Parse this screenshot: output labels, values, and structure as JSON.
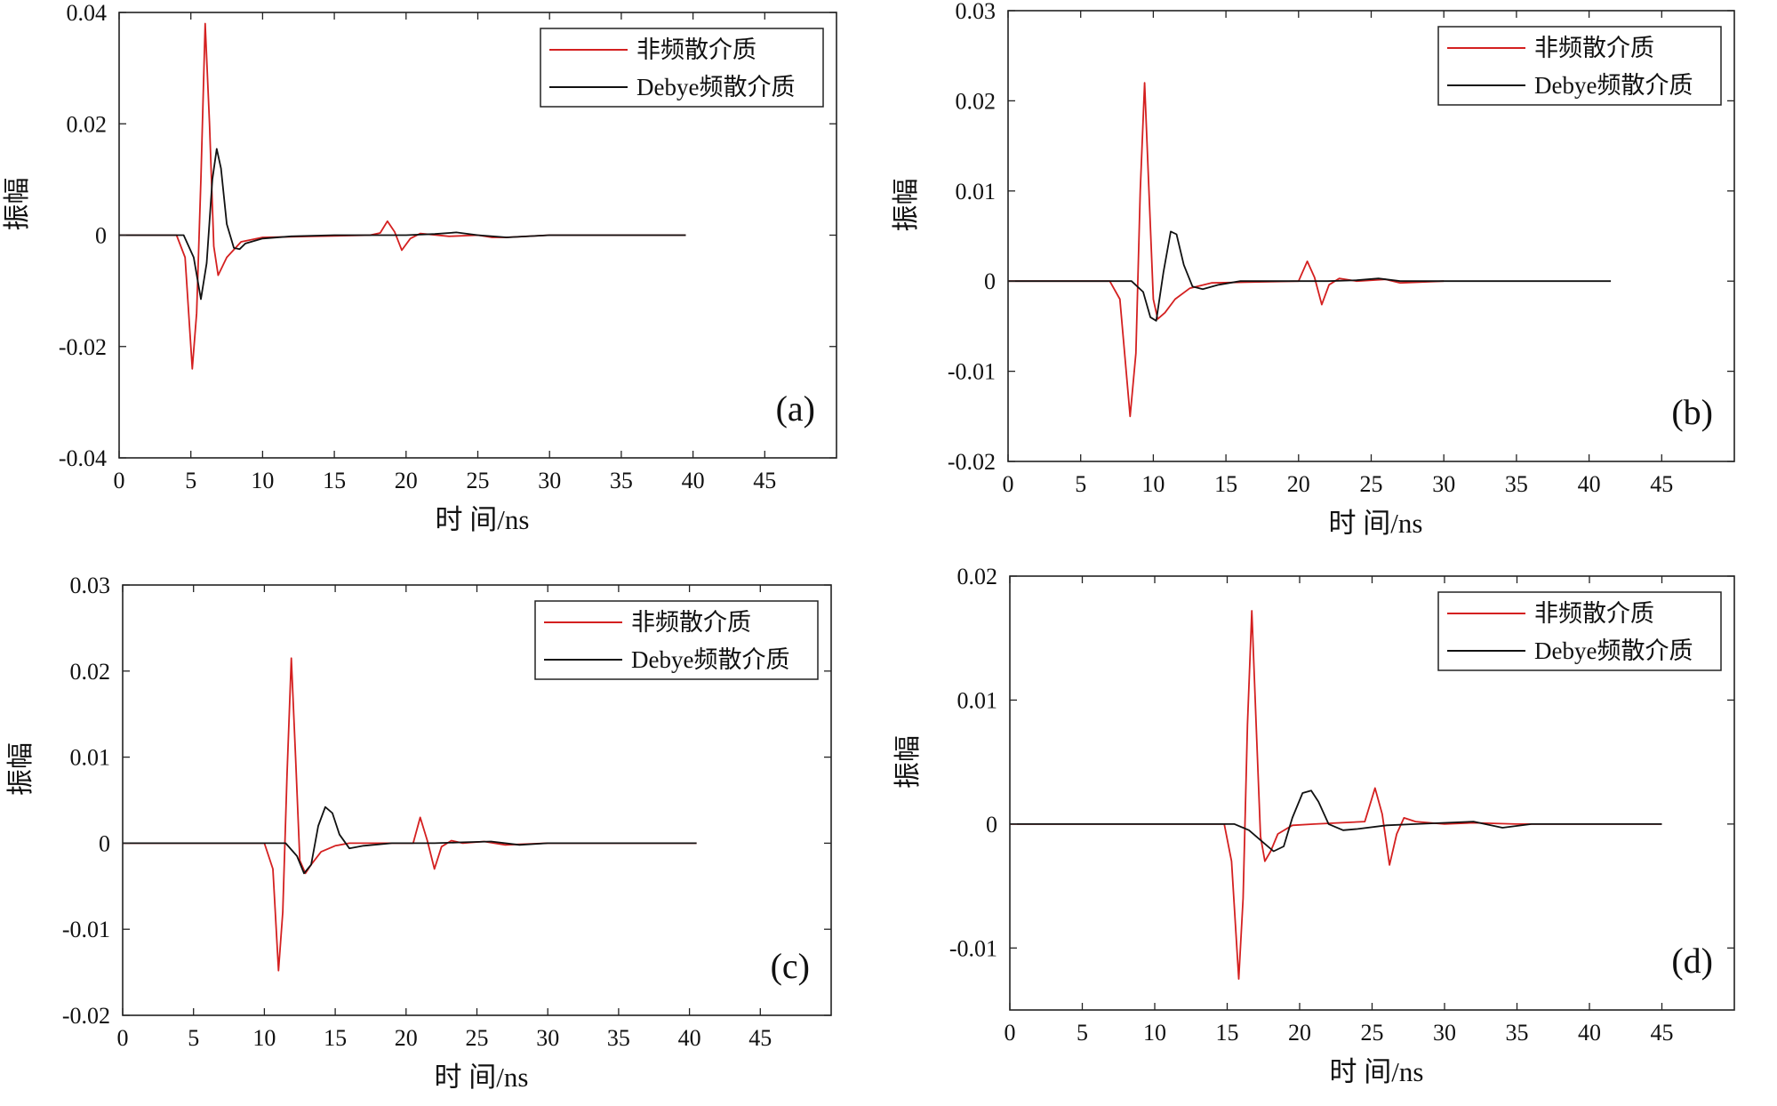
{
  "colors": {
    "red": "#d42020",
    "black": "#111111",
    "axis": "#222222"
  },
  "chart_data": [
    {
      "type": "line",
      "panel_label": "(a)",
      "xlabel": "时 间/ns",
      "ylabel": "振幅",
      "xlim": [
        0,
        50
      ],
      "ylim": [
        -0.04,
        0.04
      ],
      "xticks": [
        0,
        5,
        10,
        15,
        20,
        25,
        30,
        35,
        40,
        45
      ],
      "xtick_labels": [
        "0",
        "5",
        "10",
        "15",
        "20",
        "25",
        "30",
        "35",
        "40",
        "45"
      ],
      "yticks": [
        -0.04,
        -0.02,
        0,
        0.02,
        0.04
      ],
      "ytick_labels": [
        "-0.04",
        "-0.02",
        "0",
        "0.02",
        "0.04"
      ],
      "legend_position": "top-right",
      "series": [
        {
          "name": "非频散介质",
          "color": "red",
          "x": [
            0,
            4.0,
            4.6,
            5.1,
            5.4,
            5.7,
            6.0,
            6.3,
            6.6,
            6.9,
            7.5,
            8.5,
            10,
            17.5,
            18.2,
            18.7,
            19.2,
            19.7,
            20.3,
            21,
            23,
            25,
            26,
            27,
            30,
            39.5
          ],
          "y": [
            0,
            0,
            -0.004,
            -0.024,
            -0.014,
            0.01,
            0.038,
            0.02,
            -0.002,
            -0.0072,
            -0.004,
            -0.0012,
            -0.0004,
            0,
            0.0004,
            0.0025,
            0.0006,
            -0.0027,
            -0.0006,
            0.0003,
            -0.0002,
            0,
            -0.0004,
            -0.0004,
            0,
            0
          ]
        },
        {
          "name": "Debye频散介质",
          "color": "black",
          "x": [
            0,
            4.5,
            5.2,
            5.7,
            6.1,
            6.5,
            6.8,
            7.1,
            7.5,
            8.0,
            8.4,
            8.8,
            10,
            12,
            15,
            20,
            22,
            23.5,
            25,
            27,
            30,
            39.5
          ],
          "y": [
            0,
            0,
            -0.004,
            -0.0115,
            -0.005,
            0.01,
            0.0155,
            0.012,
            0.002,
            -0.0023,
            -0.0025,
            -0.0015,
            -0.0006,
            -0.0002,
            0,
            0,
            0.0002,
            0.0005,
            0,
            -0.0004,
            0,
            0
          ]
        }
      ]
    },
    {
      "type": "line",
      "panel_label": "(b)",
      "xlabel": "时 间/ns",
      "ylabel": "振幅",
      "xlim": [
        0,
        50
      ],
      "ylim": [
        -0.02,
        0.03
      ],
      "xticks": [
        0,
        5,
        10,
        15,
        20,
        25,
        30,
        35,
        40,
        45
      ],
      "xtick_labels": [
        "0",
        "5",
        "10",
        "15",
        "20",
        "25",
        "30",
        "35",
        "40",
        "45"
      ],
      "yticks": [
        -0.02,
        -0.01,
        0,
        0.01,
        0.02,
        0.03
      ],
      "ytick_labels": [
        "-0.02",
        "-0.01",
        "0",
        "0.01",
        "0.02",
        "0.03"
      ],
      "legend_position": "top-right",
      "series": [
        {
          "name": "非频散介质",
          "color": "red",
          "x": [
            0,
            7.0,
            7.7,
            8.4,
            8.8,
            9.1,
            9.4,
            9.7,
            10.0,
            10.3,
            10.8,
            11.5,
            12.5,
            14,
            20.0,
            20.6,
            21.1,
            21.6,
            22.1,
            22.8,
            24,
            26,
            27,
            30
          ],
          "y": [
            0,
            0,
            -0.002,
            -0.015,
            -0.008,
            0.01,
            0.022,
            0.01,
            -0.002,
            -0.0042,
            -0.0035,
            -0.002,
            -0.0008,
            -0.0002,
            0,
            0.0022,
            0.0004,
            -0.0026,
            -0.0004,
            0.0003,
            0,
            0.0002,
            -0.0002,
            0
          ]
        },
        {
          "name": "Debye频散介质",
          "color": "black",
          "x": [
            0,
            8.5,
            9.3,
            9.8,
            10.2,
            10.7,
            11.2,
            11.6,
            12.1,
            12.7,
            13.4,
            14.5,
            16,
            20,
            22,
            24,
            25.5,
            27,
            30,
            41.5
          ],
          "y": [
            0,
            0,
            -0.0012,
            -0.004,
            -0.0044,
            0.001,
            0.0055,
            0.0052,
            0.0018,
            -0.0006,
            -0.0009,
            -0.0004,
            0,
            0,
            0,
            0.0001,
            0.0003,
            0,
            0,
            0
          ]
        }
      ]
    },
    {
      "type": "line",
      "panel_label": "(c)",
      "xlabel": "时 间/ns",
      "ylabel": "振幅",
      "xlim": [
        0,
        50
      ],
      "ylim": [
        -0.02,
        0.03
      ],
      "xticks": [
        0,
        5,
        10,
        15,
        20,
        25,
        30,
        35,
        40,
        45
      ],
      "xtick_labels": [
        "0",
        "5",
        "10",
        "15",
        "20",
        "25",
        "30",
        "35",
        "40",
        "45"
      ],
      "yticks": [
        -0.02,
        -0.01,
        0,
        0.01,
        0.02,
        0.03
      ],
      "ytick_labels": [
        "-0.02",
        "-0.01",
        "0",
        "0.01",
        "0.02",
        "0.03"
      ],
      "legend_position": "top-right",
      "series": [
        {
          "name": "非频散介质",
          "color": "red",
          "x": [
            0,
            10.0,
            10.6,
            11.0,
            11.3,
            11.6,
            11.9,
            12.2,
            12.5,
            12.9,
            13.3,
            14,
            15,
            16,
            20.5,
            21.0,
            21.5,
            22.0,
            22.5,
            23.2,
            24,
            25.5,
            27,
            30,
            40.5
          ],
          "y": [
            0,
            0,
            -0.003,
            -0.0148,
            -0.008,
            0.008,
            0.0215,
            0.01,
            -0.002,
            -0.0035,
            -0.0025,
            -0.001,
            -0.0003,
            0,
            0,
            0.003,
            0.0003,
            -0.003,
            -0.0004,
            0.0003,
            0,
            0.0002,
            -0.0002,
            0,
            0
          ]
        },
        {
          "name": "Debye频散介质",
          "color": "black",
          "x": [
            0,
            11.5,
            12.3,
            12.8,
            13.3,
            13.8,
            14.3,
            14.8,
            15.3,
            16.0,
            17,
            19,
            22,
            24,
            26,
            28,
            30,
            40.5
          ],
          "y": [
            0,
            0,
            -0.0015,
            -0.0035,
            -0.0025,
            0.002,
            0.0042,
            0.0035,
            0.001,
            -0.0006,
            -0.0003,
            0,
            0,
            0.0001,
            0.0002,
            -0.0002,
            0,
            0
          ]
        }
      ]
    },
    {
      "type": "line",
      "panel_label": "(d)",
      "xlabel": "时 间/ns",
      "ylabel": "振幅",
      "xlim": [
        0,
        50
      ],
      "ylim": [
        -0.015,
        0.02
      ],
      "xticks": [
        0,
        5,
        10,
        15,
        20,
        25,
        30,
        35,
        40,
        45
      ],
      "xtick_labels": [
        "0",
        "5",
        "10",
        "15",
        "20",
        "25",
        "30",
        "35",
        "40",
        "45"
      ],
      "yticks": [
        -0.01,
        0,
        0.01,
        0.02
      ],
      "ytick_labels": [
        "-0.01",
        "0",
        "0.01",
        "0.02"
      ],
      "legend_position": "top-right",
      "series": [
        {
          "name": "非频散介质",
          "color": "red",
          "x": [
            0,
            14.8,
            15.3,
            15.8,
            16.1,
            16.4,
            16.7,
            17.0,
            17.3,
            17.6,
            18.0,
            18.5,
            19.5,
            21,
            24.5,
            25.2,
            25.7,
            26.2,
            26.7,
            27.2,
            28,
            30,
            32,
            35,
            45
          ],
          "y": [
            0,
            0,
            -0.003,
            -0.0125,
            -0.006,
            0.008,
            0.0172,
            0.008,
            -0.001,
            -0.003,
            -0.0022,
            -0.0008,
            -0.0001,
            0,
            0.0002,
            0.0029,
            0.0008,
            -0.0033,
            -0.0008,
            0.0005,
            0.0002,
            0,
            0.0001,
            0,
            0
          ]
        },
        {
          "name": "Debye频散介质",
          "color": "black",
          "x": [
            0,
            15.5,
            16.5,
            17.5,
            18.2,
            18.9,
            19.5,
            20.2,
            20.8,
            21.3,
            22,
            23,
            24,
            26,
            28,
            30,
            32,
            34,
            36,
            40,
            45
          ],
          "y": [
            0,
            0,
            -0.0005,
            -0.0015,
            -0.0022,
            -0.0018,
            0.0005,
            0.0025,
            0.0027,
            0.0018,
            0,
            -0.0005,
            -0.0004,
            -0.0001,
            0,
            0.0001,
            0.0002,
            -0.0003,
            0,
            0,
            0
          ]
        }
      ]
    }
  ]
}
